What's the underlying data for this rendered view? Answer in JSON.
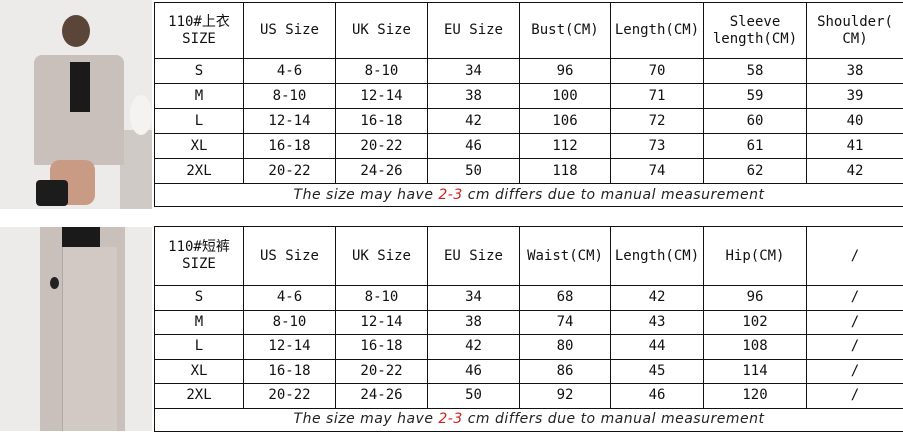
{
  "top_table": {
    "headers": [
      "110#上衣\nSIZE",
      "US Size",
      "UK Size",
      "EU Size",
      "Bust(CM)",
      "Length(CM)",
      "Sleeve length(CM)",
      "Shoulder(CM)"
    ],
    "header_lines": [
      [
        "110#上衣",
        "SIZE"
      ],
      [
        "US Size"
      ],
      [
        "UK Size"
      ],
      [
        "EU Size"
      ],
      [
        "Bust(CM)"
      ],
      [
        "Length(CM)"
      ],
      [
        "Sleeve",
        "length(CM)"
      ],
      [
        "Shoulder(",
        "CM)"
      ]
    ],
    "rows": [
      [
        "S",
        "4-6",
        "8-10",
        "34",
        "96",
        "70",
        "58",
        "38"
      ],
      [
        "M",
        "8-10",
        "12-14",
        "38",
        "100",
        "71",
        "59",
        "39"
      ],
      [
        "L",
        "12-14",
        "16-18",
        "42",
        "106",
        "72",
        "60",
        "40"
      ],
      [
        "XL",
        "16-18",
        "20-22",
        "46",
        "112",
        "73",
        "61",
        "41"
      ],
      [
        "2XL",
        "20-22",
        "24-26",
        "50",
        "118",
        "74",
        "62",
        "42"
      ]
    ],
    "note": {
      "before": "The size may have ",
      "highlight": "2-3",
      "after": " cm differs due to manual measurement"
    }
  },
  "bottom_table": {
    "header_lines": [
      [
        "110#短裤",
        "SIZE"
      ],
      [
        "US Size"
      ],
      [
        "UK Size"
      ],
      [
        "EU Size"
      ],
      [
        "Waist(CM)"
      ],
      [
        "Length(CM)"
      ],
      [
        "Hip(CM)"
      ],
      [
        "/"
      ]
    ],
    "rows": [
      [
        "S",
        "4-6",
        "8-10",
        "34",
        "68",
        "42",
        "96",
        "/"
      ],
      [
        "M",
        "8-10",
        "12-14",
        "38",
        "74",
        "43",
        "102",
        "/"
      ],
      [
        "L",
        "12-14",
        "16-18",
        "42",
        "80",
        "44",
        "108",
        "/"
      ],
      [
        "XL",
        "16-18",
        "20-22",
        "46",
        "86",
        "45",
        "114",
        "/"
      ],
      [
        "2XL",
        "20-22",
        "24-26",
        "50",
        "92",
        "46",
        "120",
        "/"
      ]
    ],
    "note": {
      "before": "The size may have ",
      "highlight": "2-3",
      "after": " cm differs due to manual measurement"
    }
  },
  "colors": {
    "highlight": "#d42020",
    "garment": "#c9bfbb"
  }
}
